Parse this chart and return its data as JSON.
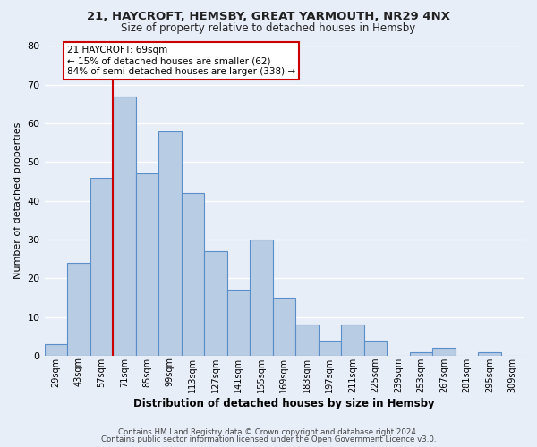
{
  "title_line1": "21, HAYCROFT, HEMSBY, GREAT YARMOUTH, NR29 4NX",
  "title_line2": "Size of property relative to detached houses in Hemsby",
  "xlabel": "Distribution of detached houses by size in Hemsby",
  "ylabel": "Number of detached properties",
  "bar_labels": [
    "29sqm",
    "43sqm",
    "57sqm",
    "71sqm",
    "85sqm",
    "99sqm",
    "113sqm",
    "127sqm",
    "141sqm",
    "155sqm",
    "169sqm",
    "183sqm",
    "197sqm",
    "211sqm",
    "225sqm",
    "239sqm",
    "253sqm",
    "267sqm",
    "281sqm",
    "295sqm",
    "309sqm"
  ],
  "bar_values": [
    3,
    24,
    46,
    67,
    47,
    58,
    42,
    27,
    17,
    30,
    15,
    8,
    4,
    8,
    4,
    0,
    1,
    2,
    0,
    1,
    0
  ],
  "bar_color": "#b8cce4",
  "bar_edge_color": "#5b8fc9",
  "ylim": [
    0,
    80
  ],
  "yticks": [
    0,
    10,
    20,
    30,
    40,
    50,
    60,
    70,
    80
  ],
  "annotation_title": "21 HAYCROFT: 69sqm",
  "annotation_line1": "← 15% of detached houses are smaller (62)",
  "annotation_line2": "84% of semi-detached houses are larger (338) →",
  "annotation_box_facecolor": "#ffffff",
  "annotation_box_edgecolor": "#cc0000",
  "subject_line_color": "#cc0000",
  "subject_bar_index": 3,
  "footer_line1": "Contains HM Land Registry data © Crown copyright and database right 2024.",
  "footer_line2": "Contains public sector information licensed under the Open Government Licence v3.0.",
  "background_color": "#e8eef8",
  "grid_color": "#ffffff"
}
